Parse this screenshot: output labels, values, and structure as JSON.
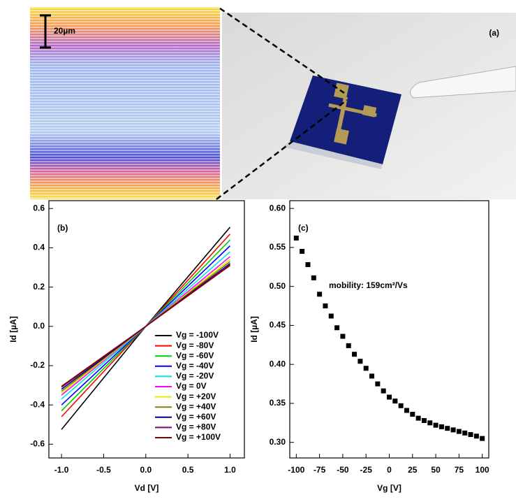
{
  "panel_a": {
    "label": "(a)",
    "scale_bar": "20µm"
  },
  "chart_data": [
    {
      "type": "line",
      "panel_label": "(b)",
      "xlabel": "Vd [V]",
      "ylabel": "Id [µA]",
      "x": [
        -1,
        0,
        1
      ],
      "xlim": [
        -1.15,
        1.17
      ],
      "ylim": [
        -0.67,
        0.64
      ],
      "xticks": [
        {
          "value": -1,
          "label": "-1.0"
        },
        -0.5,
        {
          "value": 0,
          "label": "0.0"
        },
        0.5,
        {
          "value": 1,
          "label": "1.0"
        }
      ],
      "yticks": [
        -0.6,
        -0.4,
        -0.2,
        {
          "value": 0,
          "label": "0.0"
        },
        0.2,
        0.4,
        0.6
      ],
      "legend": "lower right",
      "series": [
        {
          "name": "Vg = -100V",
          "color": "#000000",
          "values": [
            -0.525,
            0,
            0.505
          ]
        },
        {
          "name": "Vg = -80V",
          "color": "#ff0000",
          "values": [
            -0.46,
            0,
            0.47
          ]
        },
        {
          "name": "Vg = -60V",
          "color": "#00cc00",
          "values": [
            -0.43,
            0,
            0.44
          ]
        },
        {
          "name": "Vg = -40V",
          "color": "#0000ff",
          "values": [
            -0.4,
            0,
            0.41
          ]
        },
        {
          "name": "Vg = -20V",
          "color": "#00e5e5",
          "values": [
            -0.37,
            0,
            0.38
          ]
        },
        {
          "name": "Vg =  0V",
          "color": "#ff00ff",
          "values": [
            -0.35,
            0,
            0.355
          ]
        },
        {
          "name": "Vg = +20V",
          "color": "#e8e800",
          "values": [
            -0.34,
            0,
            0.34
          ]
        },
        {
          "name": "Vg = +40V",
          "color": "#808000",
          "values": [
            -0.33,
            0,
            0.33
          ]
        },
        {
          "name": "Vg = +60V",
          "color": "#000080",
          "values": [
            -0.32,
            0,
            0.32
          ]
        },
        {
          "name": "Vg = +80V",
          "color": "#800080",
          "values": [
            -0.31,
            0,
            0.315
          ]
        },
        {
          "name": "Vg = +100V",
          "color": "#800000",
          "values": [
            -0.305,
            0,
            0.31
          ]
        }
      ]
    },
    {
      "type": "scatter",
      "panel_label": "(c)",
      "xlabel": "Vg [V]",
      "ylabel": "Id [µA]",
      "annotation": "mobility: 159cm²/Vs",
      "color": "#000000",
      "xlim": [
        -107,
        107
      ],
      "ylim": [
        0.28,
        0.61
      ],
      "xticks": [
        -100,
        -75,
        -50,
        -25,
        0,
        25,
        50,
        75,
        100
      ],
      "yticks": [
        {
          "value": 0.3,
          "label": "0.30"
        },
        0.35,
        {
          "value": 0.4,
          "label": "0.40"
        },
        0.45,
        {
          "value": 0.5,
          "label": "0.50"
        },
        0.55,
        {
          "value": 0.6,
          "label": "0.60"
        }
      ],
      "x": [
        -100,
        -93.75,
        -87.5,
        -81.25,
        -75,
        -68.75,
        -62.5,
        -56.25,
        -50,
        -43.75,
        -37.5,
        -31.25,
        -25,
        -18.75,
        -12.5,
        -6.25,
        0,
        6.25,
        12.5,
        18.75,
        25,
        31.25,
        37.5,
        43.75,
        50,
        56.25,
        62.5,
        68.75,
        75,
        81.25,
        87.5,
        93.75,
        100
      ],
      "values": [
        0.562,
        0.545,
        0.528,
        0.511,
        0.49,
        0.475,
        0.462,
        0.447,
        0.436,
        0.424,
        0.413,
        0.404,
        0.395,
        0.385,
        0.375,
        0.366,
        0.358,
        0.353,
        0.347,
        0.341,
        0.336,
        0.331,
        0.328,
        0.325,
        0.322,
        0.32,
        0.318,
        0.316,
        0.314,
        0.312,
        0.31,
        0.308,
        0.305
      ]
    }
  ]
}
